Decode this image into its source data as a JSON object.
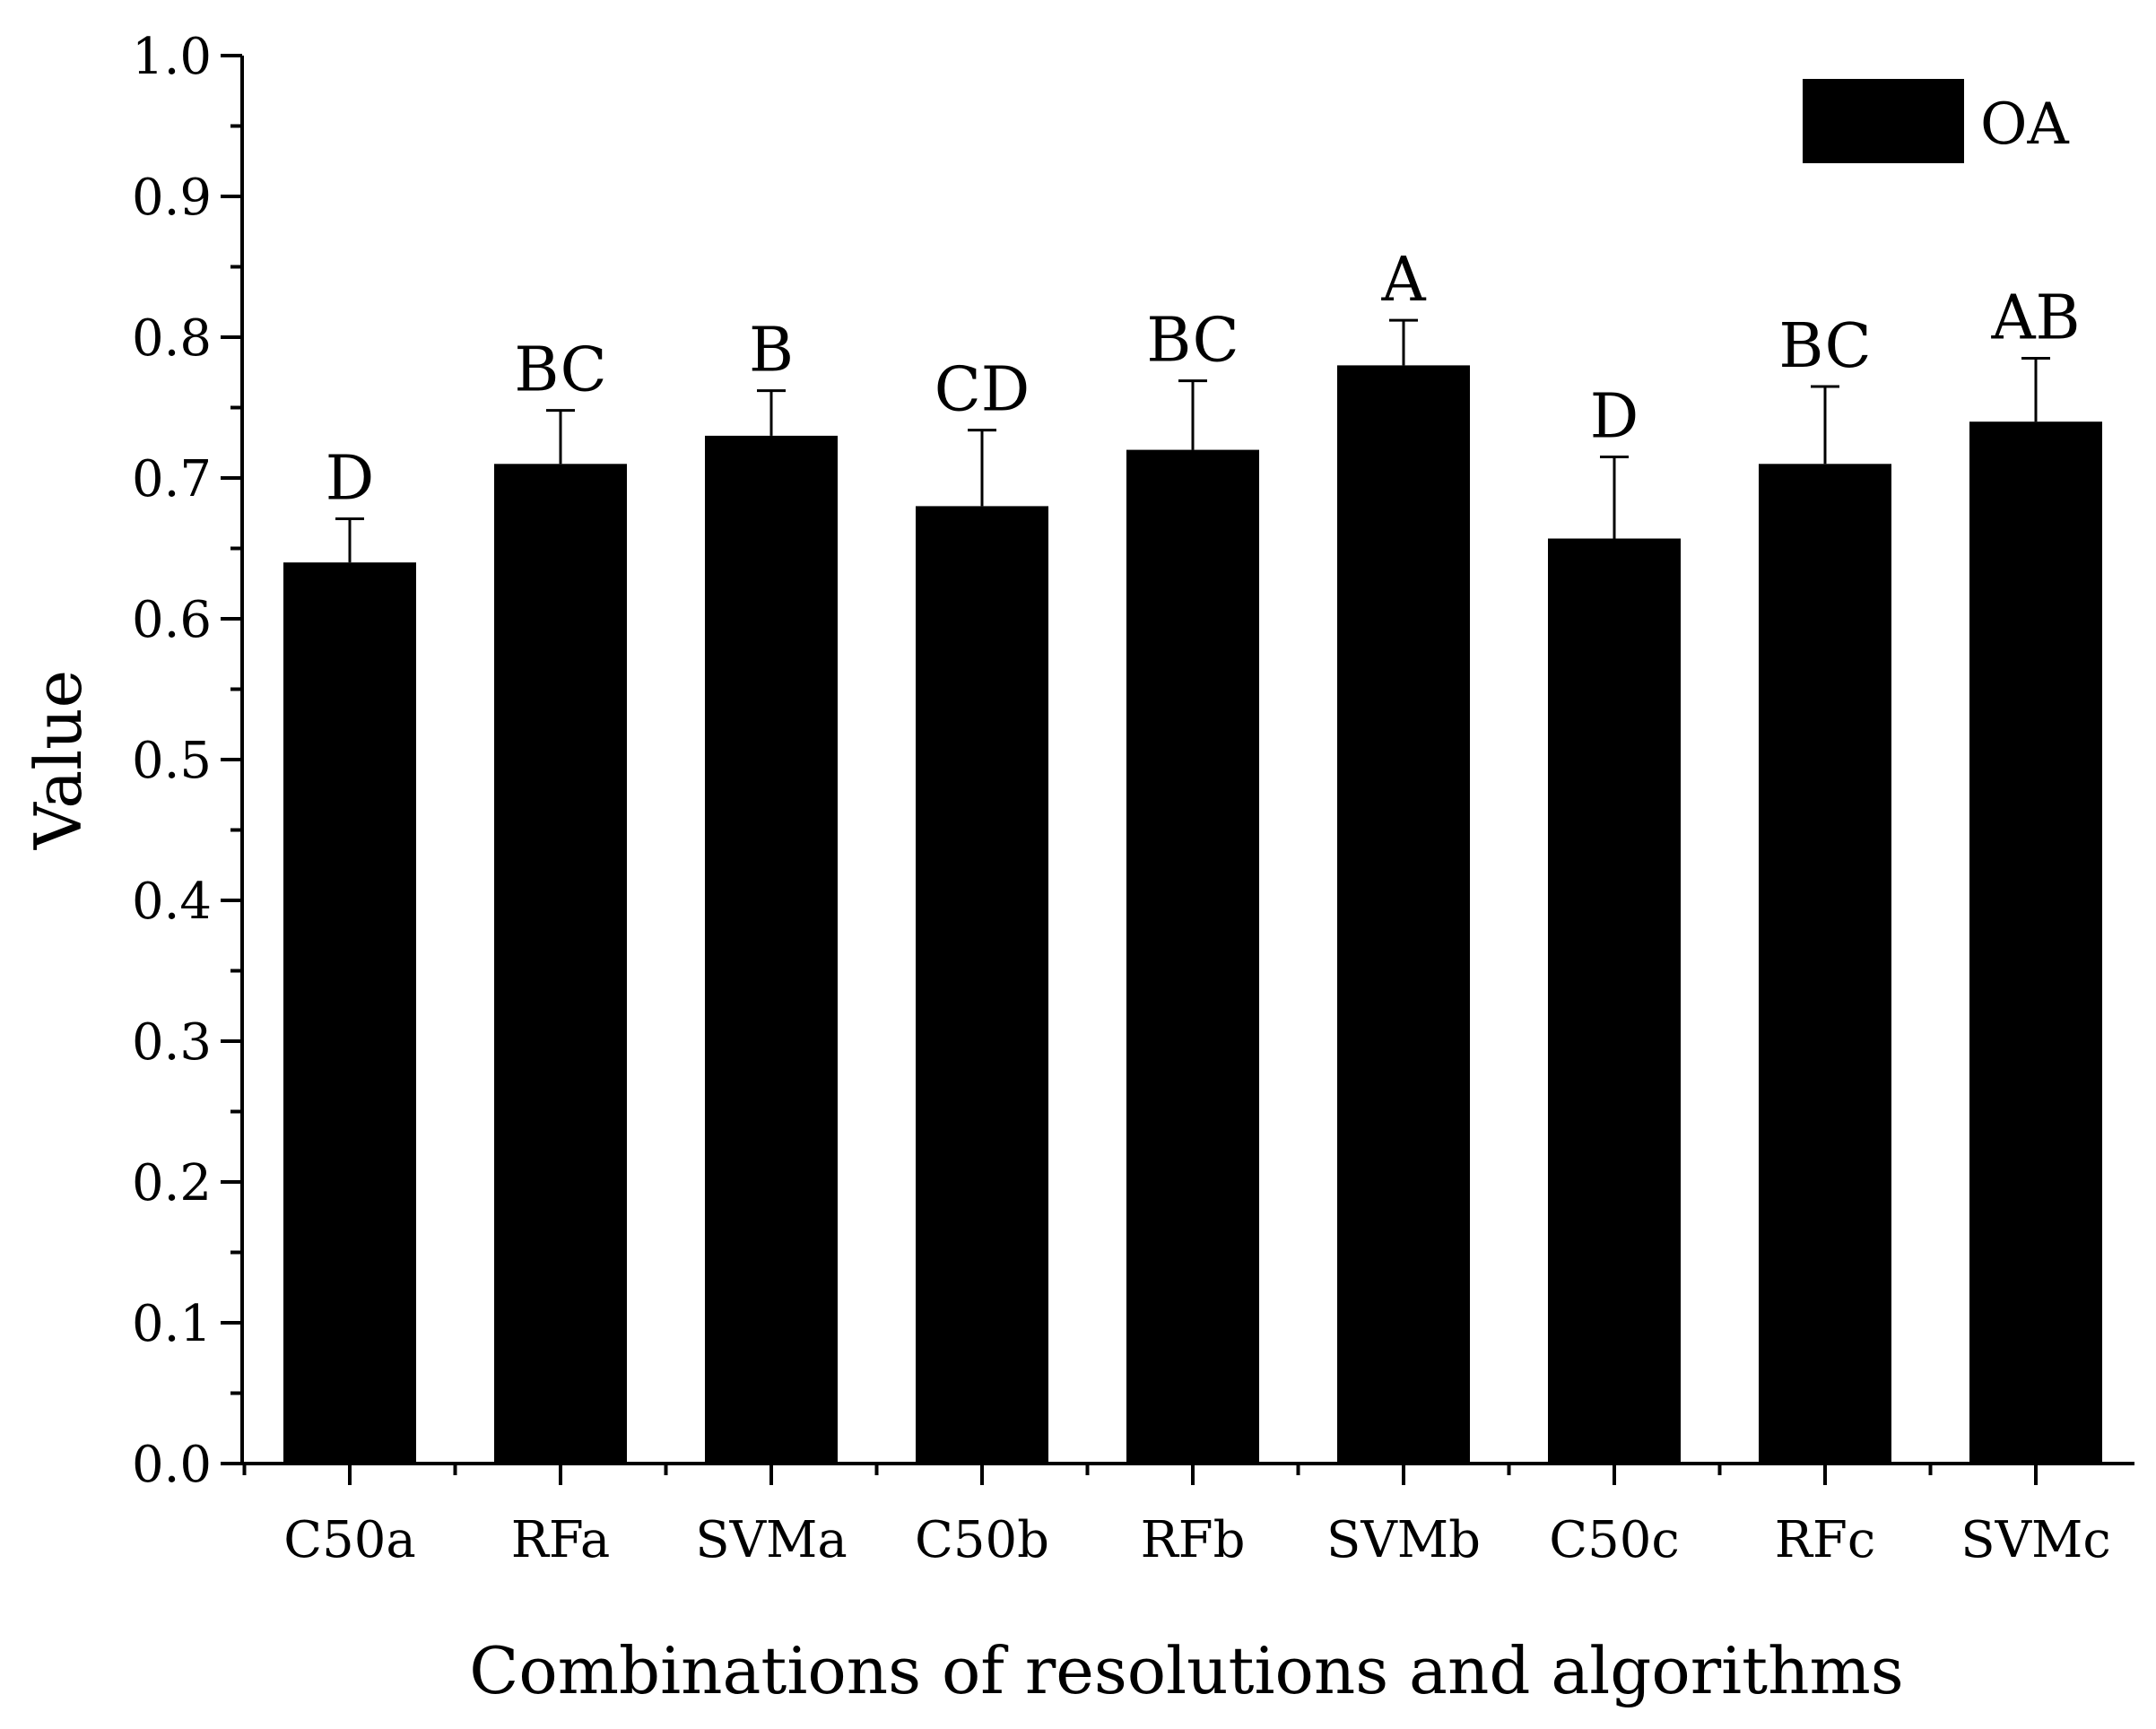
{
  "chart_data": {
    "type": "bar",
    "xlabel": "Combinations of resolutions and algorithms",
    "ylabel": "Value",
    "ylim": [
      0,
      1.0
    ],
    "y_ticks": [
      "0.0",
      "0.1",
      "0.2",
      "0.3",
      "0.4",
      "0.5",
      "0.6",
      "0.7",
      "0.8",
      "0.9",
      "1.0"
    ],
    "grid": false,
    "legend": {
      "position": "top-right",
      "entries": [
        "OA"
      ]
    },
    "categories": [
      "C50a",
      "RFa",
      "SVMa",
      "C50b",
      "RFb",
      "SVMb",
      "C50c",
      "RFc",
      "SVMc"
    ],
    "series": [
      {
        "name": "OA",
        "color": "#000000",
        "values": [
          0.64,
          0.71,
          0.73,
          0.68,
          0.72,
          0.78,
          0.657,
          0.71,
          0.74
        ],
        "error_upper": [
          0.031,
          0.038,
          0.032,
          0.054,
          0.049,
          0.032,
          0.058,
          0.055,
          0.045
        ],
        "significance_labels": [
          "D",
          "BC",
          "B",
          "CD",
          "BC",
          "A",
          "D",
          "BC",
          "AB"
        ]
      }
    ]
  }
}
